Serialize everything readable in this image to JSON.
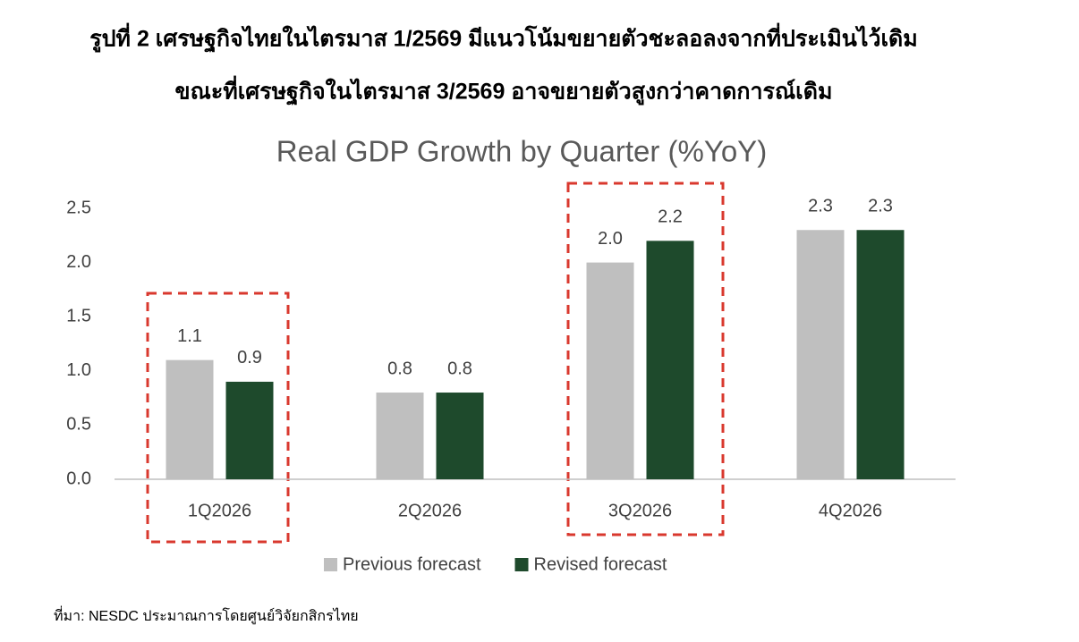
{
  "chart_data": {
    "type": "bar",
    "heading": [
      "รูปที่ 2 เศรษฐกิจไทยในไตรมาส 1/2569 มีแนวโน้มขยายตัวชะลอลงจากที่ประเมินไว้เดิม",
      "ขณะที่เศรษฐกิจในไตรมาส 3/2569 อาจขยายตัวสูงกว่าคาดการณ์เดิม"
    ],
    "title": "Real GDP Growth by Quarter (%YoY)",
    "categories": [
      "1Q2026",
      "2Q2026",
      "3Q2026",
      "4Q2026"
    ],
    "series": [
      {
        "name": "Previous forecast",
        "color": "#bfbfbf",
        "values": [
          1.1,
          0.8,
          2.0,
          2.3
        ],
        "value_labels": [
          "1.1",
          "0.8",
          "2.0",
          "2.3"
        ]
      },
      {
        "name": "Revised forecast",
        "color": "#1e4a2c",
        "values": [
          0.9,
          0.8,
          2.2,
          2.3
        ],
        "value_labels": [
          "0.9",
          "0.8",
          "2.2",
          "2.3"
        ]
      }
    ],
    "ylim": [
      0,
      2.5
    ],
    "yticks": [
      {
        "value": 0,
        "label": "0.0"
      },
      {
        "value": 0.5,
        "label": "0.5"
      },
      {
        "value": 1,
        "label": "1.0"
      },
      {
        "value": 1.5,
        "label": "1.5"
      },
      {
        "value": 2,
        "label": "2.0"
      },
      {
        "value": 2.5,
        "label": "2.5"
      }
    ],
    "grid": false,
    "legend": "bottom",
    "source": "ที่มา: NESDC ประมาณการโดยศูนย์วิจัยกสิกรไทย"
  }
}
